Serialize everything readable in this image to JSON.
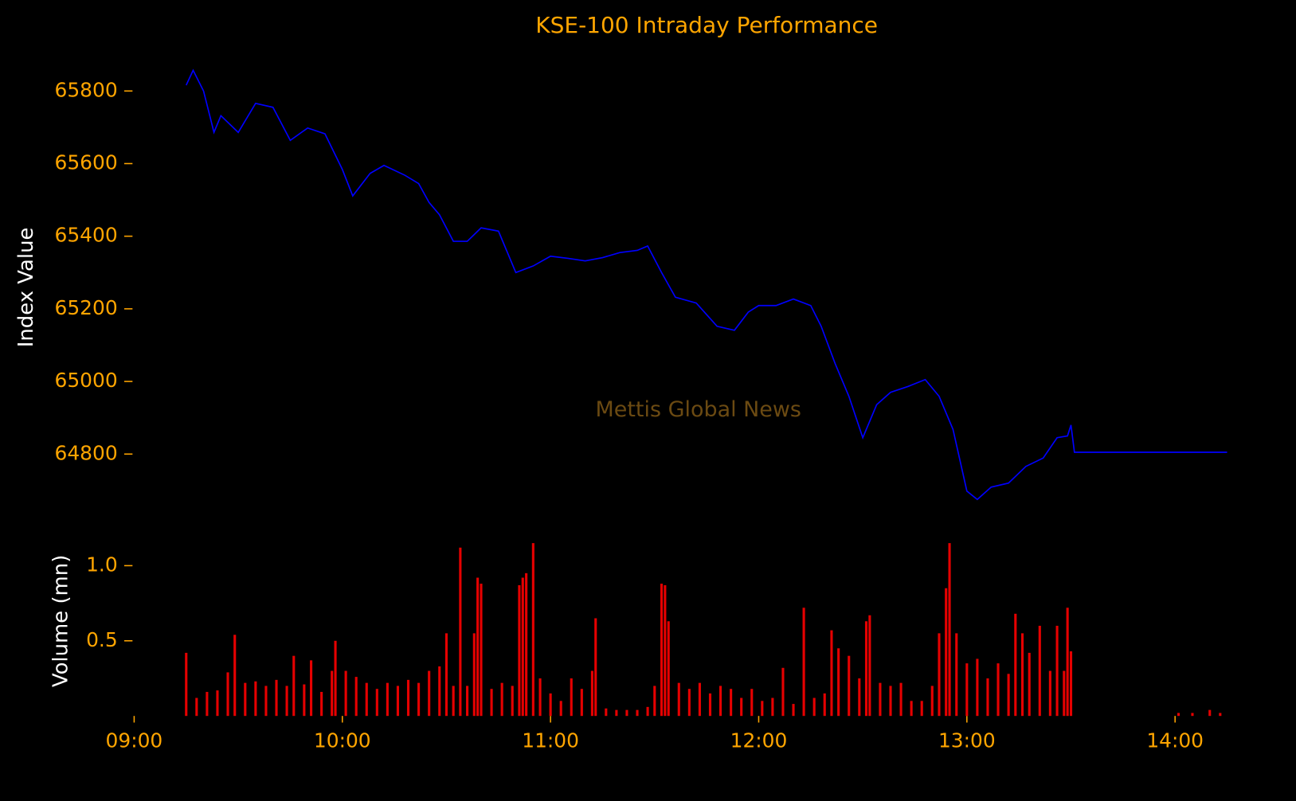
{
  "chart_data": [
    {
      "type": "line",
      "title": "KSE-100 Intraday Performance",
      "ylabel": "Index Value",
      "annotation": "Mettis Global News",
      "color": "#0000ff",
      "x": [
        "09:15",
        "09:17",
        "09:20",
        "09:23",
        "09:25",
        "09:30",
        "09:35",
        "09:40",
        "09:45",
        "09:50",
        "09:55",
        "10:00",
        "10:03",
        "10:08",
        "10:12",
        "10:18",
        "10:22",
        "10:25",
        "10:28",
        "10:32",
        "10:36",
        "10:40",
        "10:45",
        "10:50",
        "10:55",
        "11:00",
        "11:05",
        "11:10",
        "11:15",
        "11:20",
        "11:25",
        "11:28",
        "11:32",
        "11:36",
        "11:42",
        "11:48",
        "11:53",
        "11:57",
        "12:00",
        "12:05",
        "12:10",
        "12:15",
        "12:18",
        "12:22",
        "12:26",
        "12:30",
        "12:34",
        "12:38",
        "12:43",
        "12:48",
        "12:52",
        "12:56",
        "13:00",
        "13:03",
        "13:07",
        "13:12",
        "13:17",
        "13:22",
        "13:26",
        "13:29",
        "13:30",
        "13:31",
        "14:15"
      ],
      "values": [
        65816,
        65857,
        65800,
        65686,
        65732,
        65686,
        65766,
        65755,
        65664,
        65698,
        65682,
        65584,
        65511,
        65573,
        65595,
        65568,
        65545,
        65493,
        65459,
        65386,
        65386,
        65423,
        65414,
        65300,
        65318,
        65345,
        65339,
        65332,
        65341,
        65355,
        65361,
        65373,
        65300,
        65232,
        65216,
        65152,
        65141,
        65191,
        65209,
        65209,
        65227,
        65209,
        65152,
        65050,
        64959,
        64845,
        64936,
        64970,
        64986,
        65005,
        64959,
        64868,
        64698,
        64675,
        64709,
        64720,
        64766,
        64789,
        64845,
        64850,
        64880,
        64805,
        64805
      ],
      "xlim": [
        "09:00",
        "14:15"
      ],
      "ylim": [
        64620,
        65880
      ],
      "yticks": [
        64800,
        65000,
        65200,
        65400,
        65600,
        65800
      ]
    },
    {
      "type": "bar",
      "ylabel": "Volume (mn)",
      "color": "#e60000",
      "x": [
        "09:15",
        "09:18",
        "09:21",
        "09:24",
        "09:27",
        "09:29",
        "09:32",
        "09:35",
        "09:38",
        "09:41",
        "09:44",
        "09:46",
        "09:49",
        "09:51",
        "09:54",
        "09:57",
        "09:58",
        "10:01",
        "10:04",
        "10:07",
        "10:10",
        "10:13",
        "10:16",
        "10:19",
        "10:22",
        "10:25",
        "10:28",
        "10:30",
        "10:32",
        "10:34",
        "10:36",
        "10:38",
        "10:39",
        "10:40",
        "10:43",
        "10:46",
        "10:49",
        "10:51",
        "10:52",
        "10:53",
        "10:55",
        "10:57",
        "11:00",
        "11:03",
        "11:06",
        "11:09",
        "11:12",
        "11:13",
        "11:16",
        "11:19",
        "11:22",
        "11:25",
        "11:28",
        "11:30",
        "11:32",
        "11:33",
        "11:34",
        "11:37",
        "11:40",
        "11:43",
        "11:46",
        "11:49",
        "11:52",
        "11:55",
        "11:58",
        "12:01",
        "12:04",
        "12:07",
        "12:10",
        "12:13",
        "12:16",
        "12:19",
        "12:21",
        "12:23",
        "12:26",
        "12:29",
        "12:31",
        "12:32",
        "12:35",
        "12:38",
        "12:41",
        "12:44",
        "12:47",
        "12:50",
        "12:52",
        "12:54",
        "12:55",
        "12:57",
        "13:00",
        "13:03",
        "13:06",
        "13:09",
        "13:12",
        "13:14",
        "13:16",
        "13:18",
        "13:21",
        "13:24",
        "13:26",
        "13:28",
        "13:29",
        "13:30",
        "14:01",
        "14:05",
        "14:10",
        "14:13"
      ],
      "values": [
        0.42,
        0.12,
        0.16,
        0.17,
        0.29,
        0.54,
        0.22,
        0.23,
        0.2,
        0.24,
        0.2,
        0.4,
        0.21,
        0.37,
        0.16,
        0.3,
        0.5,
        0.3,
        0.26,
        0.22,
        0.18,
        0.22,
        0.2,
        0.24,
        0.22,
        0.3,
        0.33,
        0.55,
        0.2,
        1.12,
        0.2,
        0.55,
        0.92,
        0.88,
        0.18,
        0.22,
        0.2,
        0.87,
        0.92,
        0.95,
        1.15,
        0.25,
        0.15,
        0.1,
        0.25,
        0.18,
        0.3,
        0.65,
        0.05,
        0.04,
        0.04,
        0.04,
        0.06,
        0.2,
        0.88,
        0.87,
        0.63,
        0.22,
        0.18,
        0.22,
        0.15,
        0.2,
        0.18,
        0.12,
        0.18,
        0.1,
        0.12,
        0.32,
        0.08,
        0.72,
        0.12,
        0.15,
        0.57,
        0.45,
        0.4,
        0.25,
        0.63,
        0.67,
        0.22,
        0.2,
        0.22,
        0.1,
        0.1,
        0.2,
        0.55,
        0.85,
        1.15,
        0.55,
        0.35,
        0.38,
        0.25,
        0.35,
        0.28,
        0.68,
        0.55,
        0.42,
        0.6,
        0.3,
        0.6,
        0.3,
        0.72,
        0.43,
        0.02,
        0.02,
        0.04,
        0.02
      ],
      "xlim": [
        "09:00",
        "14:15"
      ],
      "ylim": [
        0,
        1.2
      ],
      "yticks": [
        0.5,
        {
          "value": 1,
          "label": "1.0"
        }
      ],
      "xticks": [
        "09:00",
        "10:00",
        "11:00",
        "12:00",
        "13:00",
        "14:00"
      ]
    }
  ]
}
